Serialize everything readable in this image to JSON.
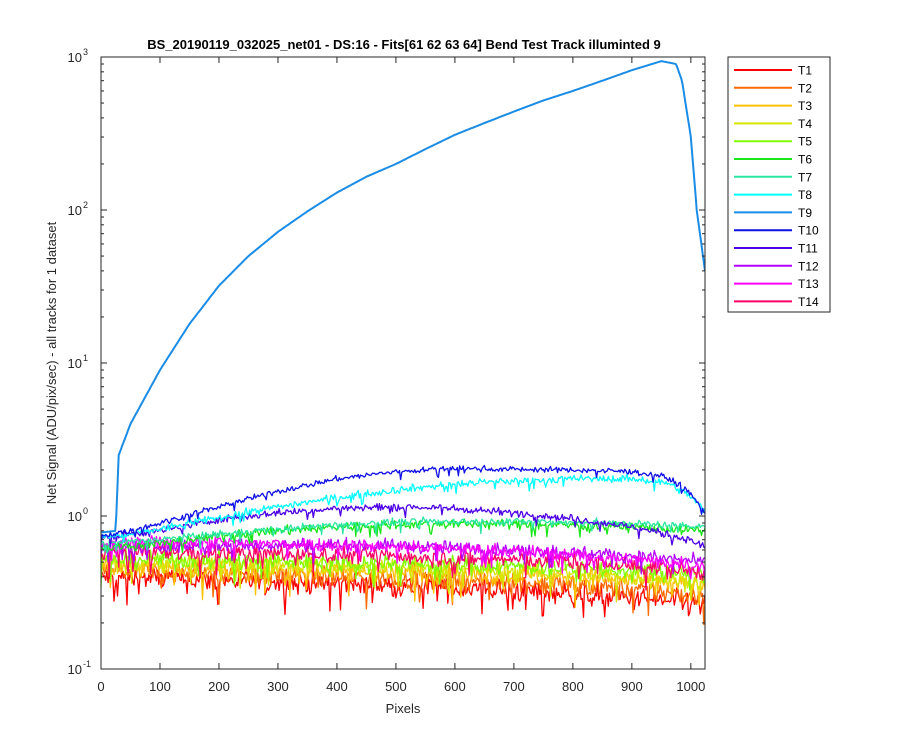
{
  "chart_data": {
    "type": "line",
    "title": "BS_20190119_032025_net01 - DS:16 - Fits[61  62  63  64]   Bend Test        Track illuminted 9",
    "xlabel": "Pixels",
    "ylabel": "Net Signal (ADU/pix/sec) - all tracks for 1 dataset",
    "yscale": "log",
    "xlim": [
      0,
      1024
    ],
    "ylim": [
      0.1,
      1000
    ],
    "x_ticks": [
      0,
      100,
      200,
      300,
      400,
      500,
      600,
      700,
      800,
      900,
      1000
    ],
    "x_tick_labels": [
      "0",
      "100",
      "200",
      "300",
      "400",
      "500",
      "600",
      "700",
      "800",
      "900",
      "1000"
    ],
    "y_ticks": [
      0.1,
      1,
      10,
      100,
      1000
    ],
    "y_tick_labels": [
      {
        "base": "10",
        "exp": "-1"
      },
      {
        "base": "10",
        "exp": "0"
      },
      {
        "base": "10",
        "exp": "1"
      },
      {
        "base": "10",
        "exp": "2"
      },
      {
        "base": "10",
        "exp": "3"
      }
    ],
    "legend_position": "outside-right-top",
    "series": [
      {
        "name": "T1",
        "color": "#ff0000",
        "x": [
          0,
          100,
          200,
          300,
          400,
          500,
          600,
          700,
          800,
          900,
          1024
        ],
        "y": [
          0.4,
          0.39,
          0.38,
          0.37,
          0.36,
          0.35,
          0.34,
          0.33,
          0.31,
          0.29,
          0.26
        ],
        "noise": 0.13
      },
      {
        "name": "T2",
        "color": "#ff6a00",
        "x": [
          0,
          100,
          200,
          300,
          400,
          500,
          600,
          700,
          800,
          900,
          1024
        ],
        "y": [
          0.44,
          0.43,
          0.42,
          0.41,
          0.4,
          0.39,
          0.38,
          0.37,
          0.35,
          0.33,
          0.3
        ],
        "noise": 0.12
      },
      {
        "name": "T3",
        "color": "#ffc000",
        "x": [
          0,
          100,
          200,
          300,
          400,
          500,
          600,
          700,
          800,
          900,
          1024
        ],
        "y": [
          0.46,
          0.46,
          0.45,
          0.45,
          0.44,
          0.43,
          0.42,
          0.41,
          0.4,
          0.38,
          0.35
        ],
        "noise": 0.11
      },
      {
        "name": "T4",
        "color": "#d7e600",
        "x": [
          0,
          100,
          200,
          300,
          400,
          500,
          600,
          700,
          800,
          900,
          1024
        ],
        "y": [
          0.5,
          0.49,
          0.49,
          0.48,
          0.47,
          0.46,
          0.45,
          0.44,
          0.42,
          0.4,
          0.37
        ],
        "noise": 0.1
      },
      {
        "name": "T5",
        "color": "#80ff00",
        "x": [
          0,
          100,
          200,
          300,
          400,
          500,
          600,
          700,
          800,
          900,
          1024
        ],
        "y": [
          0.52,
          0.52,
          0.51,
          0.51,
          0.5,
          0.49,
          0.48,
          0.47,
          0.46,
          0.44,
          0.42
        ],
        "noise": 0.1
      },
      {
        "name": "T6",
        "color": "#19e619",
        "x": [
          0,
          100,
          150,
          200,
          300,
          400,
          500,
          600,
          700,
          800,
          900,
          1024
        ],
        "y": [
          0.62,
          0.66,
          0.7,
          0.74,
          0.8,
          0.85,
          0.88,
          0.89,
          0.88,
          0.87,
          0.85,
          0.8
        ],
        "noise": 0.05
      },
      {
        "name": "T7",
        "color": "#29e6a0",
        "x": [
          0,
          100,
          200,
          300,
          400,
          500,
          600,
          700,
          800,
          900,
          1024
        ],
        "y": [
          0.66,
          0.7,
          0.76,
          0.82,
          0.88,
          0.91,
          0.92,
          0.92,
          0.91,
          0.89,
          0.86
        ],
        "noise": 0.04
      },
      {
        "name": "T8",
        "color": "#00ffff",
        "x": [
          0,
          50,
          100,
          200,
          300,
          400,
          500,
          600,
          700,
          800,
          900,
          960,
          1000,
          1024
        ],
        "y": [
          0.72,
          0.76,
          0.82,
          0.98,
          1.15,
          1.32,
          1.48,
          1.62,
          1.7,
          1.75,
          1.75,
          1.65,
          1.35,
          1.05
        ],
        "noise": 0.04
      },
      {
        "name": "T9",
        "color": "#1a8ce6",
        "x": [
          0,
          25,
          30,
          50,
          80,
          100,
          150,
          200,
          250,
          300,
          350,
          400,
          450,
          500,
          550,
          600,
          650,
          700,
          750,
          800,
          850,
          900,
          950,
          975,
          985,
          1000,
          1010,
          1024
        ],
        "y": [
          0.78,
          0.8,
          2.5,
          4.0,
          6.5,
          9.0,
          18,
          32,
          50,
          72,
          98,
          130,
          165,
          200,
          250,
          310,
          370,
          440,
          520,
          600,
          700,
          820,
          940,
          900,
          700,
          300,
          100,
          40
        ],
        "noise": 0.0
      },
      {
        "name": "T10",
        "color": "#0f0fe6",
        "x": [
          0,
          50,
          100,
          200,
          300,
          400,
          500,
          600,
          700,
          800,
          900,
          960,
          1000,
          1024
        ],
        "y": [
          0.74,
          0.8,
          0.9,
          1.15,
          1.45,
          1.75,
          1.95,
          2.05,
          2.02,
          2.0,
          1.95,
          1.8,
          1.4,
          1.05
        ],
        "noise": 0.03
      },
      {
        "name": "T11",
        "color": "#4c00e6",
        "x": [
          0,
          100,
          200,
          300,
          400,
          500,
          600,
          700,
          800,
          900,
          1000,
          1024
        ],
        "y": [
          0.72,
          0.8,
          0.95,
          1.05,
          1.12,
          1.15,
          1.12,
          1.05,
          0.96,
          0.85,
          0.7,
          0.62
        ],
        "noise": 0.04
      },
      {
        "name": "T12",
        "color": "#b300ff",
        "x": [
          0,
          100,
          200,
          300,
          400,
          500,
          600,
          700,
          800,
          900,
          1024
        ],
        "y": [
          0.62,
          0.63,
          0.64,
          0.65,
          0.65,
          0.64,
          0.62,
          0.6,
          0.58,
          0.55,
          0.5
        ],
        "noise": 0.07
      },
      {
        "name": "T13",
        "color": "#ff00ff",
        "x": [
          0,
          100,
          200,
          300,
          400,
          500,
          600,
          700,
          800,
          900,
          1024
        ],
        "y": [
          0.66,
          0.67,
          0.67,
          0.66,
          0.65,
          0.63,
          0.61,
          0.59,
          0.56,
          0.52,
          0.48
        ],
        "noise": 0.07
      },
      {
        "name": "T14",
        "color": "#ff0066",
        "x": [
          0,
          100,
          200,
          300,
          400,
          500,
          600,
          700,
          800,
          900,
          1024
        ],
        "y": [
          0.58,
          0.58,
          0.57,
          0.57,
          0.56,
          0.55,
          0.53,
          0.52,
          0.5,
          0.47,
          0.43
        ],
        "noise": 0.09
      }
    ]
  }
}
